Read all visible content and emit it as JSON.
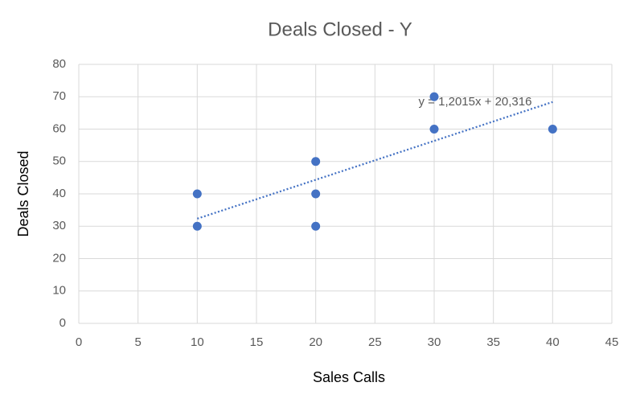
{
  "chart_data": {
    "type": "scatter",
    "title": "Deals Closed - Y",
    "x_label": "Sales Calls",
    "y_label": "Deals Closed",
    "x": [
      10,
      10,
      20,
      20,
      20,
      30,
      30,
      40
    ],
    "series": [
      {
        "name": "Deals Closed",
        "color": "#4472c4",
        "values": [
          40,
          30,
          50,
          40,
          30,
          70,
          60,
          60
        ]
      }
    ],
    "xlim": [
      0,
      45
    ],
    "xticks": [
      0,
      5,
      10,
      15,
      20,
      25,
      30,
      35,
      40,
      45
    ],
    "ylim": [
      0,
      80
    ],
    "yticks": [
      0,
      10,
      20,
      30,
      40,
      50,
      60,
      70,
      80
    ],
    "grid": true,
    "trendline": {
      "label": "y = 1,2015x + 20,316",
      "slope": 1.2015,
      "intercept": 20.316,
      "color": "#4472c4"
    }
  }
}
